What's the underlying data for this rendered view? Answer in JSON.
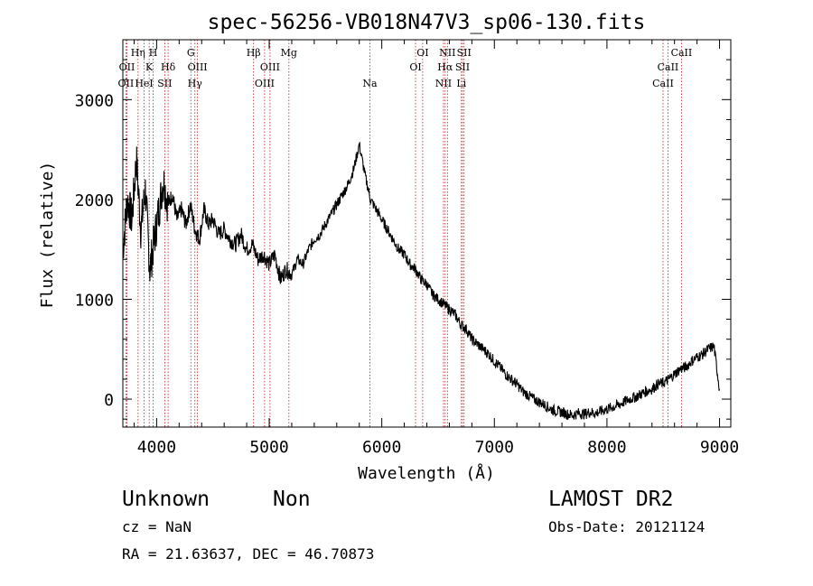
{
  "chart_data": {
    "type": "line",
    "title": "spec-56256-VB018N47V3_sp06-130.fits",
    "xlabel": "Wavelength (Å)",
    "ylabel": "Flux (relative)",
    "xlim": [
      3700,
      9100
    ],
    "ylim": [
      -280,
      3600
    ],
    "x_ticks": [
      4000,
      5000,
      6000,
      7000,
      8000,
      9000
    ],
    "y_ticks": [
      0,
      1000,
      2000,
      3000
    ],
    "grid": false,
    "series": [
      {
        "color": "#000000",
        "x": [
          3700,
          3740,
          3780,
          3820,
          3860,
          3900,
          3940,
          3980,
          4020,
          4060,
          4100,
          4140,
          4180,
          4220,
          4260,
          4300,
          4340,
          4380,
          4420,
          4460,
          4500,
          4550,
          4600,
          4650,
          4700,
          4750,
          4800,
          4850,
          4900,
          4950,
          5000,
          5050,
          5100,
          5150,
          5200,
          5250,
          5300,
          5350,
          5400,
          5450,
          5500,
          5550,
          5600,
          5650,
          5700,
          5750,
          5800,
          5850,
          5900,
          5950,
          6000,
          6050,
          6100,
          6150,
          6200,
          6250,
          6300,
          6350,
          6400,
          6450,
          6500,
          6550,
          6600,
          6650,
          6700,
          6750,
          6800,
          6850,
          6900,
          6950,
          7000,
          7050,
          7100,
          7150,
          7200,
          7250,
          7300,
          7350,
          7400,
          7450,
          7500,
          7550,
          7600,
          7650,
          7700,
          7750,
          7800,
          7850,
          7900,
          7950,
          8000,
          8050,
          8100,
          8150,
          8200,
          8250,
          8300,
          8350,
          8400,
          8450,
          8500,
          8550,
          8600,
          8650,
          8700,
          8750,
          8800,
          8850,
          8900,
          8950,
          9000
        ],
        "y": [
          1500,
          2000,
          1800,
          2400,
          1700,
          2100,
          1300,
          1600,
          1900,
          2200,
          1950,
          2050,
          1800,
          1900,
          1750,
          1950,
          1700,
          1600,
          1900,
          1750,
          1800,
          1650,
          1700,
          1600,
          1550,
          1650,
          1500,
          1550,
          1400,
          1450,
          1350,
          1450,
          1200,
          1300,
          1250,
          1400,
          1350,
          1500,
          1600,
          1650,
          1750,
          1850,
          1950,
          2050,
          2150,
          2300,
          2550,
          2250,
          2000,
          1900,
          1800,
          1700,
          1600,
          1500,
          1450,
          1350,
          1300,
          1200,
          1150,
          1050,
          1000,
          950,
          900,
          850,
          750,
          700,
          600,
          550,
          500,
          450,
          380,
          320,
          250,
          200,
          150,
          80,
          40,
          0,
          -30,
          -60,
          -100,
          -120,
          -130,
          -150,
          -160,
          -140,
          -150,
          -130,
          -140,
          -120,
          -100,
          -80,
          -60,
          -30,
          0,
          20,
          50,
          80,
          100,
          150,
          160,
          200,
          250,
          300,
          320,
          380,
          420,
          450,
          500,
          530,
          100
        ]
      }
    ],
    "lines": [
      {
        "x": 3727,
        "label": "OII",
        "row": 3
      },
      {
        "x": 3736,
        "label": "OII",
        "row": 2
      },
      {
        "x": 3835,
        "label": "Hη",
        "row": 1
      },
      {
        "x": 3889,
        "label": "HeI",
        "row": 3
      },
      {
        "x": 3934,
        "label": "K",
        "row": 2
      },
      {
        "x": 3969,
        "label": "H",
        "row": 1
      },
      {
        "x": 4072,
        "label": "SII",
        "row": 3
      },
      {
        "x": 4102,
        "label": "Hδ",
        "row": 2
      },
      {
        "x": 4304,
        "label": "G",
        "row": 1
      },
      {
        "x": 4340,
        "label": "Hγ",
        "row": 3
      },
      {
        "x": 4363,
        "label": "OIII",
        "row": 2
      },
      {
        "x": 4861,
        "label": "Hβ",
        "row": 1
      },
      {
        "x": 4959,
        "label": "OIII",
        "row": 3
      },
      {
        "x": 5007,
        "label": "OIII",
        "row": 2
      },
      {
        "x": 5175,
        "label": "Mg",
        "row": 1
      },
      {
        "x": 5894,
        "label": "Na",
        "row": 3
      },
      {
        "x": 6300,
        "label": "OI",
        "row": 2
      },
      {
        "x": 6363,
        "label": "OI",
        "row": 1
      },
      {
        "x": 6548,
        "label": "NII",
        "row": 3
      },
      {
        "x": 6563,
        "label": "Hα",
        "row": 2
      },
      {
        "x": 6583,
        "label": "NII",
        "row": 1
      },
      {
        "x": 6707,
        "label": "Li",
        "row": 3
      },
      {
        "x": 6717,
        "label": "SII",
        "row": 2
      },
      {
        "x": 6731,
        "label": "SII",
        "row": 1
      },
      {
        "x": 8498,
        "label": "CaII",
        "row": 3
      },
      {
        "x": 8542,
        "label": "CaII",
        "row": 2
      },
      {
        "x": 8662,
        "label": "CaII",
        "row": 1
      }
    ]
  },
  "info": {
    "class": "Unknown",
    "subclass": "Non",
    "cz": "cz = NaN",
    "coords": "RA =  21.63637, DEC =  46.70873",
    "survey": "LAMOST DR2",
    "obs_date": "Obs-Date: 20121124"
  }
}
